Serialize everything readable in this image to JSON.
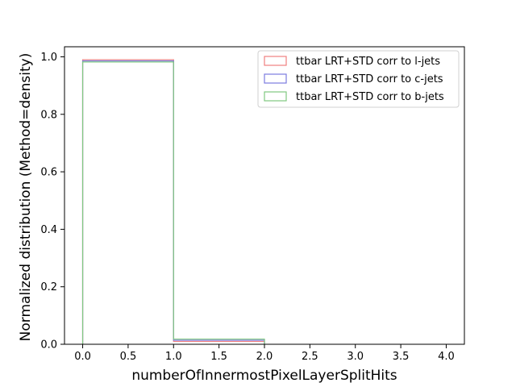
{
  "chart_data": {
    "type": "histogram",
    "xlabel": "numberOfInnermostPixelLayerSplitHits",
    "ylabel": "Normalized distribution (Method=density)",
    "xlim": [
      -0.2,
      4.2
    ],
    "ylim": [
      0,
      1.035
    ],
    "xticks": [
      "0.0",
      "0.5",
      "1.0",
      "1.5",
      "2.0",
      "2.5",
      "3.0",
      "3.5",
      "4.0"
    ],
    "yticks": [
      "0.0",
      "0.2",
      "0.4",
      "0.6",
      "0.8",
      "1.0"
    ],
    "bin_edges": [
      0,
      1,
      2
    ],
    "legend_position": "upper-right",
    "series": [
      {
        "name": "ttbar LRT+STD corr to l-jets",
        "color": "#f08080",
        "values": [
          0.99,
          0.01
        ]
      },
      {
        "name": "ttbar LRT+STD corr to c-jets",
        "color": "#7b7bdf",
        "values": [
          0.986,
          0.014
        ]
      },
      {
        "name": "ttbar LRT+STD corr to b-jets",
        "color": "#80c880",
        "values": [
          0.982,
          0.018
        ]
      }
    ]
  }
}
